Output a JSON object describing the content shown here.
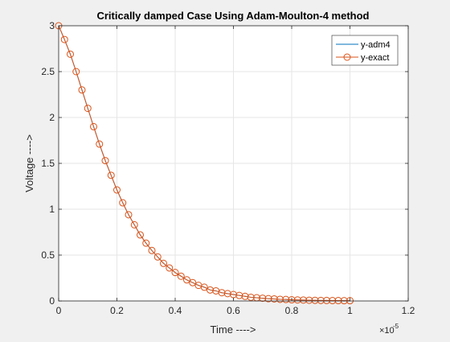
{
  "chart_data": {
    "type": "line",
    "title": "Critically damped Case Using Adam-Moulton-4 method",
    "xlabel": "Time ---->",
    "ylabel": "Voltage ---->",
    "x_exponent_label": "×10",
    "x_exponent_power": "-5",
    "xlim": [
      0,
      1.2
    ],
    "ylim": [
      0,
      3
    ],
    "xticks": [
      0,
      0.2,
      0.4,
      0.6,
      0.8,
      1,
      1.2
    ],
    "xtick_labels": [
      "0",
      "0.2",
      "0.4",
      "0.6",
      "0.8",
      "1",
      "1.2"
    ],
    "yticks": [
      0,
      0.5,
      1,
      1.5,
      2,
      2.5,
      3
    ],
    "ytick_labels": [
      "0",
      "0.5",
      "1",
      "1.5",
      "2",
      "2.5",
      "3"
    ],
    "grid": true,
    "legend_position": "top-right",
    "colors": {
      "adm4": "#0072BD",
      "exact": "#D95319",
      "grid": "#e6e6e6",
      "axes": "#262626",
      "plot_bg": "#ffffff",
      "figure_bg": "#f0f0f0"
    },
    "x": [
      0,
      0.02,
      0.04,
      0.06,
      0.08,
      0.1,
      0.12,
      0.14,
      0.16,
      0.18,
      0.2,
      0.22,
      0.24,
      0.26,
      0.28,
      0.3,
      0.32,
      0.34,
      0.36,
      0.38,
      0.4,
      0.42,
      0.44,
      0.46,
      0.48,
      0.5,
      0.52,
      0.54,
      0.56,
      0.58,
      0.6,
      0.62,
      0.64,
      0.66,
      0.68,
      0.7,
      0.72,
      0.74,
      0.76,
      0.78,
      0.8,
      0.82,
      0.84,
      0.86,
      0.88,
      0.9,
      0.92,
      0.94,
      0.96,
      0.98,
      1
    ],
    "series": [
      {
        "name": "y-adm4",
        "style": "line",
        "values": [
          3.0,
          2.85,
          2.69,
          2.5,
          2.3,
          2.1,
          1.9,
          1.71,
          1.53,
          1.37,
          1.21,
          1.07,
          0.94,
          0.83,
          0.72,
          0.63,
          0.55,
          0.48,
          0.41,
          0.36,
          0.31,
          0.27,
          0.23,
          0.2,
          0.17,
          0.15,
          0.12,
          0.11,
          0.09,
          0.08,
          0.07,
          0.06,
          0.05,
          0.04,
          0.035,
          0.03,
          0.025,
          0.022,
          0.018,
          0.016,
          0.013,
          0.011,
          0.01,
          0.008,
          0.007,
          0.006,
          0.005,
          0.004,
          0.004,
          0.003,
          0.003
        ]
      },
      {
        "name": "y-exact",
        "style": "line-circle",
        "values": [
          3.0,
          2.85,
          2.69,
          2.5,
          2.3,
          2.1,
          1.9,
          1.71,
          1.53,
          1.37,
          1.21,
          1.07,
          0.94,
          0.83,
          0.72,
          0.63,
          0.55,
          0.48,
          0.41,
          0.36,
          0.31,
          0.27,
          0.23,
          0.2,
          0.17,
          0.15,
          0.12,
          0.11,
          0.09,
          0.08,
          0.07,
          0.06,
          0.05,
          0.04,
          0.035,
          0.03,
          0.025,
          0.022,
          0.018,
          0.016,
          0.013,
          0.011,
          0.01,
          0.008,
          0.007,
          0.006,
          0.005,
          0.004,
          0.004,
          0.003,
          0.003
        ]
      }
    ]
  }
}
